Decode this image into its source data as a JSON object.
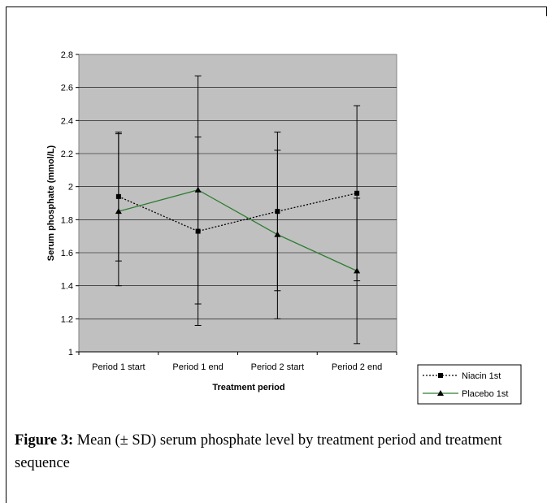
{
  "chart_data": {
    "type": "line",
    "categories": [
      "Period 1 start",
      "Period 1 end",
      "Period 2 start",
      "Period 2 end"
    ],
    "xlabel": "Treatment period",
    "ylabel": "Serum phosphate (mmol/L)",
    "ylim": [
      1,
      2.8
    ],
    "yticks": [
      "1",
      "1.2",
      "1.4",
      "1.6",
      "1.8",
      "2",
      "2.2",
      "2.4",
      "2.6",
      "2.8"
    ],
    "grid": true,
    "legend_position": "bottom-right",
    "series": [
      {
        "name": "Niacin 1st",
        "marker": "square",
        "line_style": "dotted",
        "color": "#000000",
        "values": [
          1.94,
          1.73,
          1.85,
          1.96
        ],
        "error_low": [
          1.55,
          1.16,
          1.37,
          1.43
        ],
        "error_high": [
          2.33,
          2.3,
          2.33,
          2.49
        ]
      },
      {
        "name": "Placebo 1st",
        "marker": "triangle",
        "line_style": "solid",
        "color": "#2e7d32",
        "values": [
          1.85,
          1.98,
          1.71,
          1.49
        ],
        "error_low": [
          1.4,
          1.29,
          1.2,
          1.05
        ],
        "error_high": [
          2.32,
          2.67,
          2.22,
          1.93
        ]
      }
    ],
    "colors": {
      "plot_background": "#c0c0c0",
      "gridline": "#000000"
    }
  },
  "caption": {
    "label": "Figure 3:",
    "text": " Mean (± SD) serum phosphate level by treatment period and treatment sequence"
  }
}
